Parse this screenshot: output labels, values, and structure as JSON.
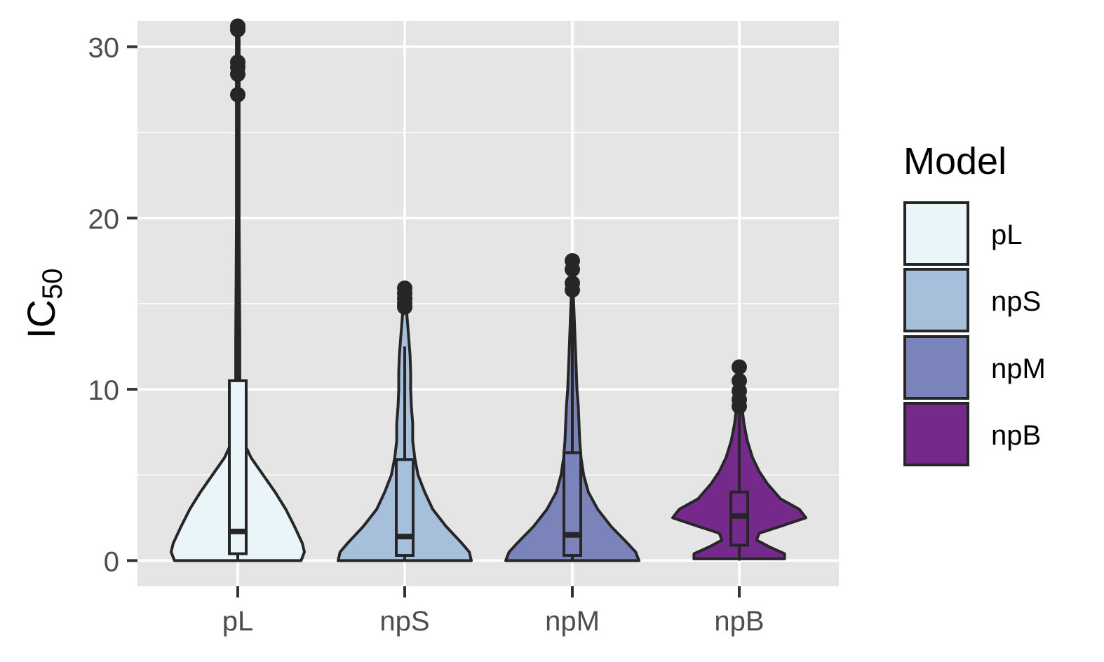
{
  "chart_data": {
    "type": "violin",
    "overlay": "boxplot",
    "categories": [
      "pL",
      "npS",
      "npM",
      "npB"
    ],
    "ylabel_main": "IC",
    "ylabel_sub": "50",
    "xlabel": "",
    "ylim": [
      -1.5,
      31.5
    ],
    "yticks": [
      0,
      10,
      20,
      30
    ],
    "grid": true,
    "legend": {
      "title": "Model",
      "position": "right",
      "entries": [
        "pL",
        "npS",
        "npM",
        "npB"
      ]
    },
    "colors": {
      "pL": "#eaf5f9",
      "npS": "#a6c0dc",
      "npM": "#7a84ba",
      "npB": "#752a8b",
      "panel": "#e5e5e5",
      "grid": "#ffffff",
      "outline": "#262626"
    },
    "series": [
      {
        "name": "pL",
        "box": {
          "q1": 0.4,
          "median": 1.7,
          "q3": 10.5,
          "whisker_low": 0.0,
          "whisker_high": 26.0
        },
        "outliers": [
          27.2,
          28.4,
          28.8,
          29.1,
          31.0,
          31.2
        ],
        "density": [
          [
            0.0,
            0.95
          ],
          [
            0.5,
            1.0
          ],
          [
            1.0,
            0.97
          ],
          [
            2.0,
            0.85
          ],
          [
            3.0,
            0.72
          ],
          [
            4.0,
            0.56
          ],
          [
            5.0,
            0.38
          ],
          [
            6.0,
            0.2
          ],
          [
            7.0,
            0.08
          ],
          [
            8.0,
            0.04
          ],
          [
            10.0,
            0.03
          ],
          [
            13.0,
            0.03
          ],
          [
            16.0,
            0.025
          ],
          [
            20.0,
            0.02
          ],
          [
            24.0,
            0.02
          ],
          [
            27.0,
            0.02
          ],
          [
            29.0,
            0.02
          ],
          [
            31.2,
            0.02
          ]
        ]
      },
      {
        "name": "npS",
        "box": {
          "q1": 0.3,
          "median": 1.4,
          "q3": 5.9,
          "whisker_low": 0.0,
          "whisker_high": 12.5
        },
        "outliers": [
          14.8,
          15.0,
          15.3,
          15.6,
          15.9
        ],
        "density": [
          [
            0.0,
            1.0
          ],
          [
            0.5,
            0.97
          ],
          [
            1.0,
            0.86
          ],
          [
            2.0,
            0.62
          ],
          [
            3.0,
            0.42
          ],
          [
            4.0,
            0.3
          ],
          [
            5.0,
            0.2
          ],
          [
            6.0,
            0.15
          ],
          [
            7.0,
            0.12
          ],
          [
            8.0,
            0.12
          ],
          [
            9.0,
            0.1
          ],
          [
            10.0,
            0.09
          ],
          [
            11.0,
            0.09
          ],
          [
            12.0,
            0.08
          ],
          [
            13.0,
            0.06
          ],
          [
            14.0,
            0.04
          ],
          [
            15.0,
            0.02
          ],
          [
            15.9,
            0.01
          ]
        ]
      },
      {
        "name": "npM",
        "box": {
          "q1": 0.3,
          "median": 1.5,
          "q3": 6.3,
          "whisker_low": 0.0,
          "whisker_high": 15.0
        },
        "outliers": [
          15.8,
          16.2,
          17.0,
          17.5
        ],
        "density": [
          [
            0.0,
            1.0
          ],
          [
            0.5,
            0.95
          ],
          [
            1.0,
            0.83
          ],
          [
            2.0,
            0.58
          ],
          [
            3.0,
            0.38
          ],
          [
            4.0,
            0.24
          ],
          [
            5.0,
            0.17
          ],
          [
            6.0,
            0.13
          ],
          [
            7.0,
            0.11
          ],
          [
            8.0,
            0.1
          ],
          [
            9.0,
            0.09
          ],
          [
            10.0,
            0.07
          ],
          [
            11.0,
            0.06
          ],
          [
            12.0,
            0.05
          ],
          [
            13.0,
            0.04
          ],
          [
            14.0,
            0.03
          ],
          [
            15.0,
            0.02
          ],
          [
            16.0,
            0.01
          ],
          [
            17.5,
            0.005
          ]
        ]
      },
      {
        "name": "npB",
        "box": {
          "q1": 0.9,
          "median": 2.6,
          "q3": 4.0,
          "whisker_low": 0.0,
          "whisker_high": 8.6
        },
        "outliers": [
          9.0,
          9.4,
          9.9,
          10.5,
          11.3
        ],
        "density": [
          [
            0.1,
            0.68
          ],
          [
            0.4,
            0.68
          ],
          [
            0.8,
            0.45
          ],
          [
            1.2,
            0.26
          ],
          [
            1.6,
            0.3
          ],
          [
            2.0,
            0.62
          ],
          [
            2.5,
            1.0
          ],
          [
            3.0,
            0.9
          ],
          [
            3.6,
            0.62
          ],
          [
            4.5,
            0.42
          ],
          [
            5.2,
            0.3
          ],
          [
            6.0,
            0.2
          ],
          [
            7.0,
            0.12
          ],
          [
            8.0,
            0.07
          ],
          [
            9.0,
            0.04
          ],
          [
            10.0,
            0.02
          ],
          [
            11.3,
            0.01
          ]
        ]
      }
    ]
  }
}
